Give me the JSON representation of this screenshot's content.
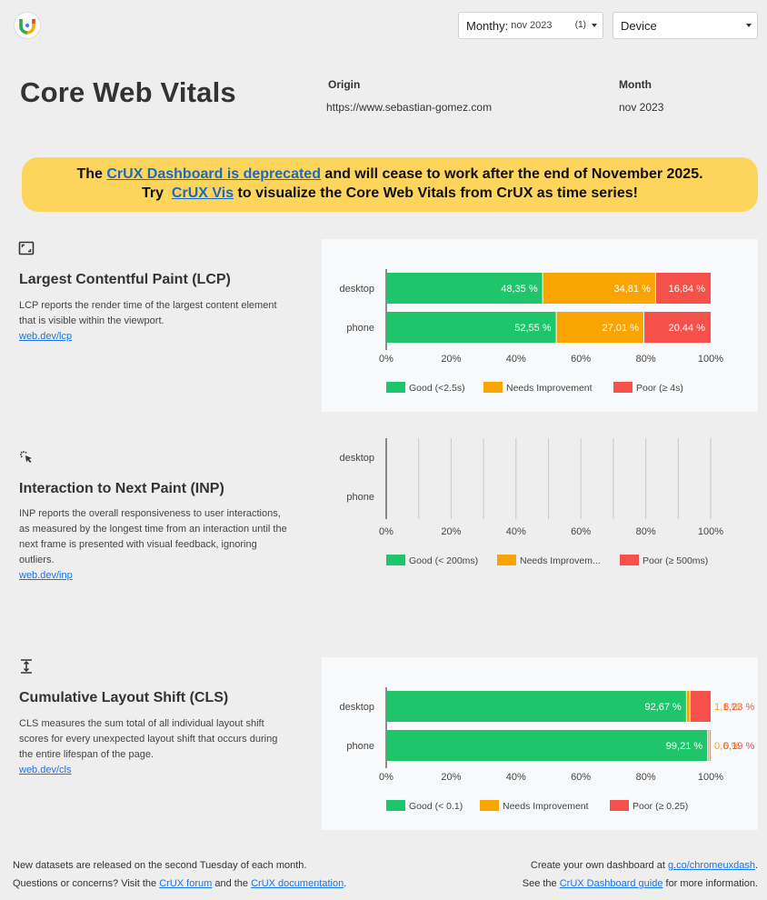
{
  "header": {
    "month_filter_label": "Monthy:",
    "month_filter_value": "nov 2023",
    "month_filter_count": "(1)",
    "device_filter_value": "Device"
  },
  "title": "Core Web Vitals",
  "origin": {
    "label": "Origin",
    "value": "https://www.sebastian-gomez.com"
  },
  "month": {
    "label": "Month",
    "value": "nov 2023"
  },
  "banner": {
    "line1_pre": "The ",
    "line1_link": "CrUX Dashboard is deprecated",
    "line1_post": " and will cease to work after the end of November 2025.",
    "line2_pre": "Try  ",
    "line2_link": "CrUX Vis",
    "line2_post": " to visualize the Core Web Vitals from CrUX as time series!"
  },
  "metrics": {
    "lcp": {
      "icon": "largest-paint-icon",
      "title": "Largest Contentful Paint (LCP)",
      "description": "LCP reports the render time of the largest content element that is visible within the viewport.",
      "link": "web.dev/lcp"
    },
    "inp": {
      "icon": "interaction-icon",
      "title": "Interaction to Next Paint (INP)",
      "description": "INP reports the overall responsiveness to user interactions, as measured by the longest time from an interaction until the next frame is presented with visual feedback, ignoring outliers.",
      "link": "web.dev/inp"
    },
    "cls": {
      "icon": "layout-shift-icon",
      "title": "Cumulative Layout Shift (CLS)",
      "description": "CLS measures the sum total of all individual layout shift scores for every unexpected layout shift that occurs during the entire lifespan of the page.",
      "link": "web.dev/cls"
    }
  },
  "colors": {
    "good": "#1ec56b",
    "needs": "#f9a400",
    "poor": "#f55049"
  },
  "chart_data": [
    {
      "id": "lcp",
      "type": "bar",
      "stacked": true,
      "orientation": "horizontal",
      "categories": [
        "desktop",
        "phone"
      ],
      "series": [
        {
          "name": "Good (<2.5s)",
          "values": [
            48.35,
            52.55
          ],
          "labels": [
            "48,35 %",
            "52,55 %"
          ]
        },
        {
          "name": "Needs Improvement",
          "values": [
            34.81,
            27.01
          ],
          "labels": [
            "34,81 %",
            "27,01 %"
          ]
        },
        {
          "name": "Poor (≥ 4s)",
          "values": [
            16.84,
            20.44
          ],
          "labels": [
            "16,84 %",
            "20,44 %"
          ]
        }
      ],
      "xlim": [
        0,
        100
      ],
      "ticks": [
        "0%",
        "20%",
        "40%",
        "60%",
        "80%",
        "100%"
      ],
      "legend": "bottom"
    },
    {
      "id": "inp",
      "type": "bar",
      "stacked": true,
      "orientation": "horizontal",
      "categories": [
        "desktop",
        "phone"
      ],
      "series": [
        {
          "name": "Good (< 200ms)",
          "values": [
            0,
            0
          ],
          "labels": [
            "",
            ""
          ]
        },
        {
          "name": "Needs Improvem...",
          "values": [
            0,
            0
          ],
          "labels": [
            "",
            ""
          ]
        },
        {
          "name": "Poor (≥ 500ms)",
          "values": [
            0,
            0
          ],
          "labels": [
            "",
            ""
          ]
        }
      ],
      "xlim": [
        0,
        100
      ],
      "ticks": [
        "0%",
        "20%",
        "40%",
        "60%",
        "80%",
        "100%"
      ],
      "legend": "bottom"
    },
    {
      "id": "cls",
      "type": "bar",
      "stacked": true,
      "orientation": "horizontal",
      "categories": [
        "desktop",
        "phone"
      ],
      "series": [
        {
          "name": "Good (< 0.1)",
          "values": [
            92.67,
            99.21
          ],
          "labels": [
            "92,67 %",
            "99,21 %"
          ]
        },
        {
          "name": "Needs Improvement",
          "values": [
            1.1,
            0.6
          ],
          "labels": [
            "1,1 %",
            "0,6 %"
          ]
        },
        {
          "name": "Poor (≥ 0.25)",
          "values": [
            6.23,
            0.19
          ],
          "labels": [
            "6,23 %",
            "0,19 %"
          ]
        }
      ],
      "xlim": [
        0,
        100
      ],
      "ticks": [
        "0%",
        "20%",
        "40%",
        "60%",
        "80%",
        "100%"
      ],
      "legend": "bottom"
    }
  ],
  "footer": {
    "left_line1": "New datasets are released on the second Tuesday of each month.",
    "left_line2_pre": "Questions or concerns? Visit the ",
    "left_line2_link1": "CrUX forum",
    "left_line2_mid": " and the ",
    "left_line2_link2": "CrUX documentation",
    "left_line2_post": ".",
    "right_line1_pre": "Create your own dashboard at ",
    "right_line1_link": "g.co/chromeuxdash",
    "right_line1_post": ".",
    "right_line2_pre": "See the ",
    "right_line2_link": "CrUX Dashboard guide",
    "right_line2_post": " for more information."
  }
}
